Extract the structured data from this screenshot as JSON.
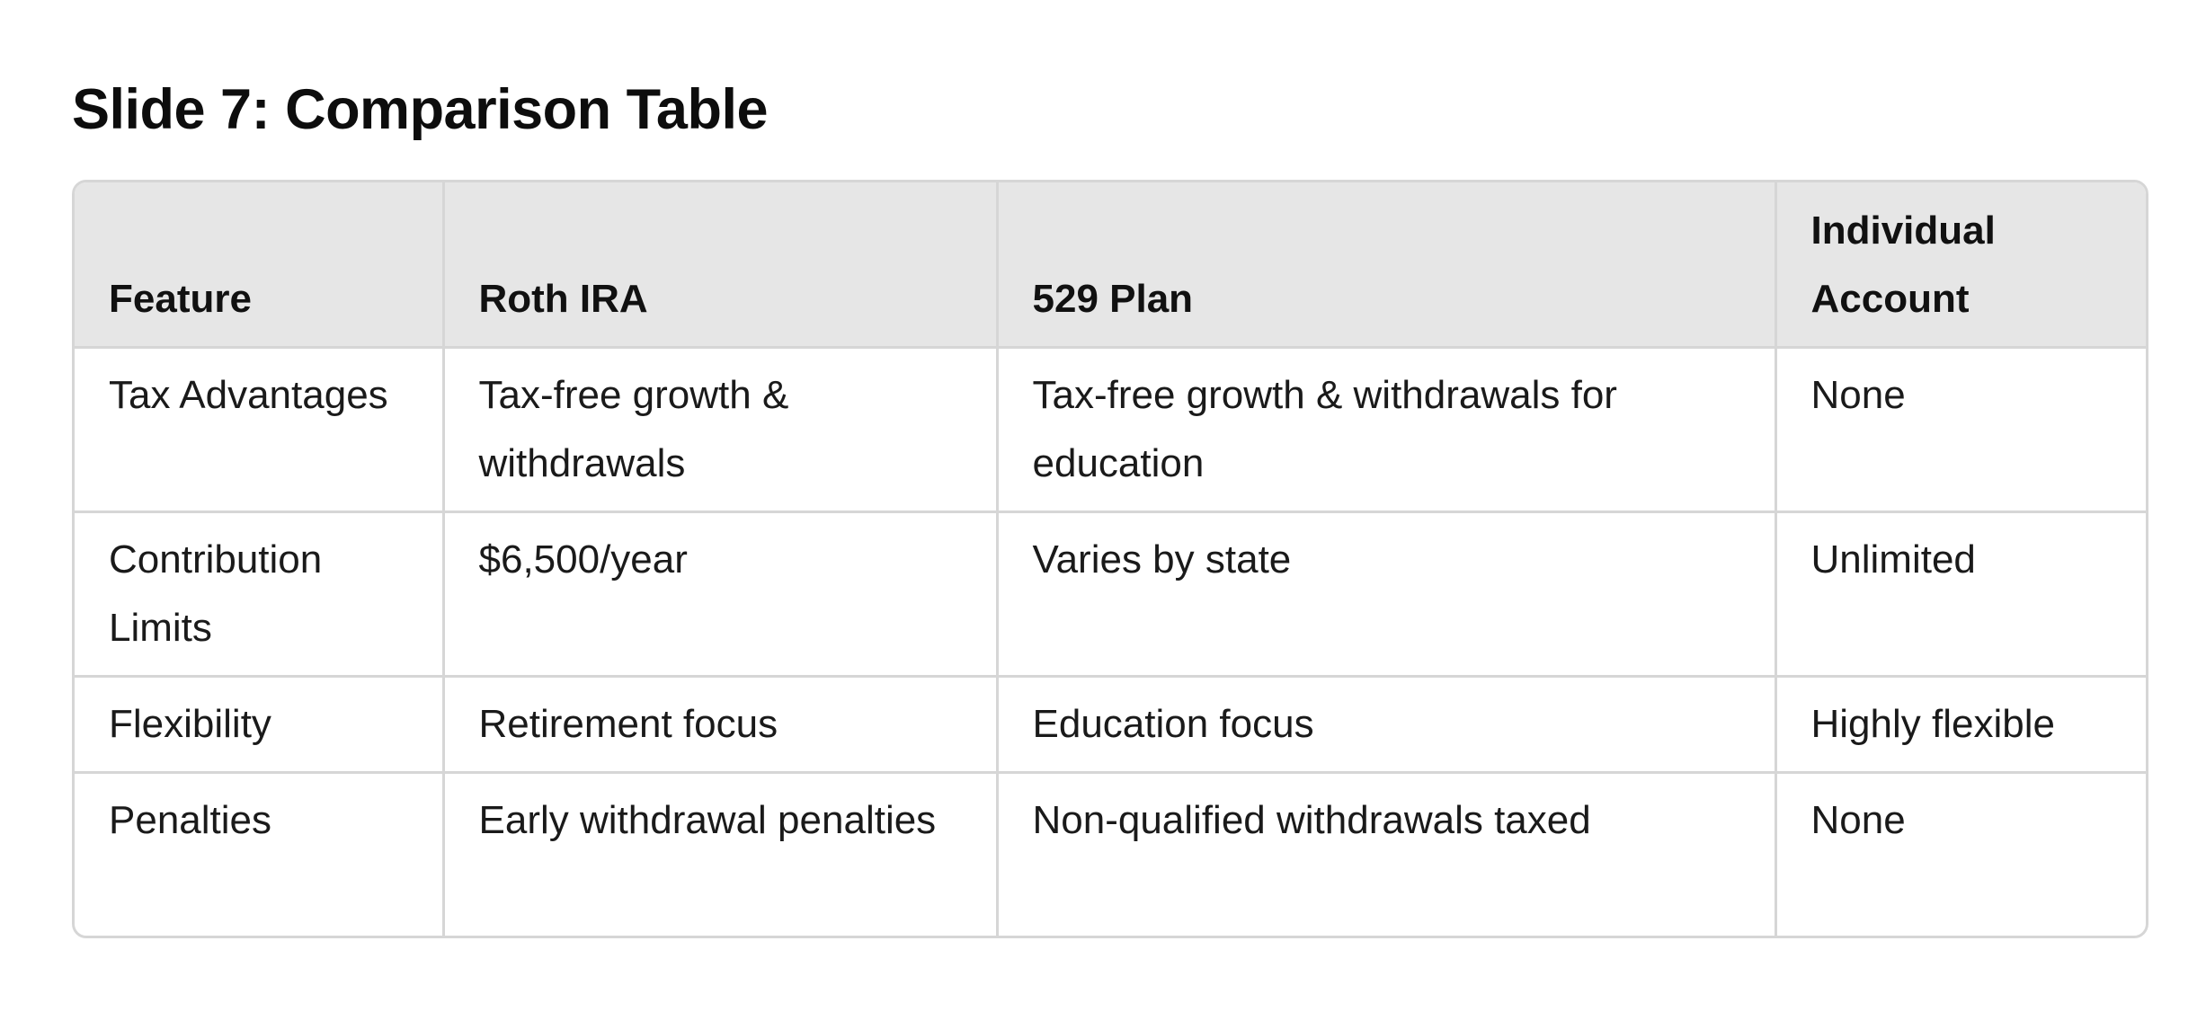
{
  "title": "Slide 7: Comparison Table",
  "table": {
    "headers": [
      "Feature",
      "Roth IRA",
      "529 Plan",
      "Individual Account"
    ],
    "rows": [
      [
        "Tax Advantages",
        "Tax-free growth & withdrawals",
        "Tax-free growth & withdrawals for education",
        "None"
      ],
      [
        "Contribution Limits",
        "$6,500/year",
        "Varies by state",
        "Unlimited"
      ],
      [
        "Flexibility",
        "Retirement focus",
        "Education focus",
        "Highly flexible"
      ],
      [
        "Penalties",
        "Early withdrawal penalties",
        "Non-qualified withdrawals taxed",
        "None"
      ]
    ]
  }
}
